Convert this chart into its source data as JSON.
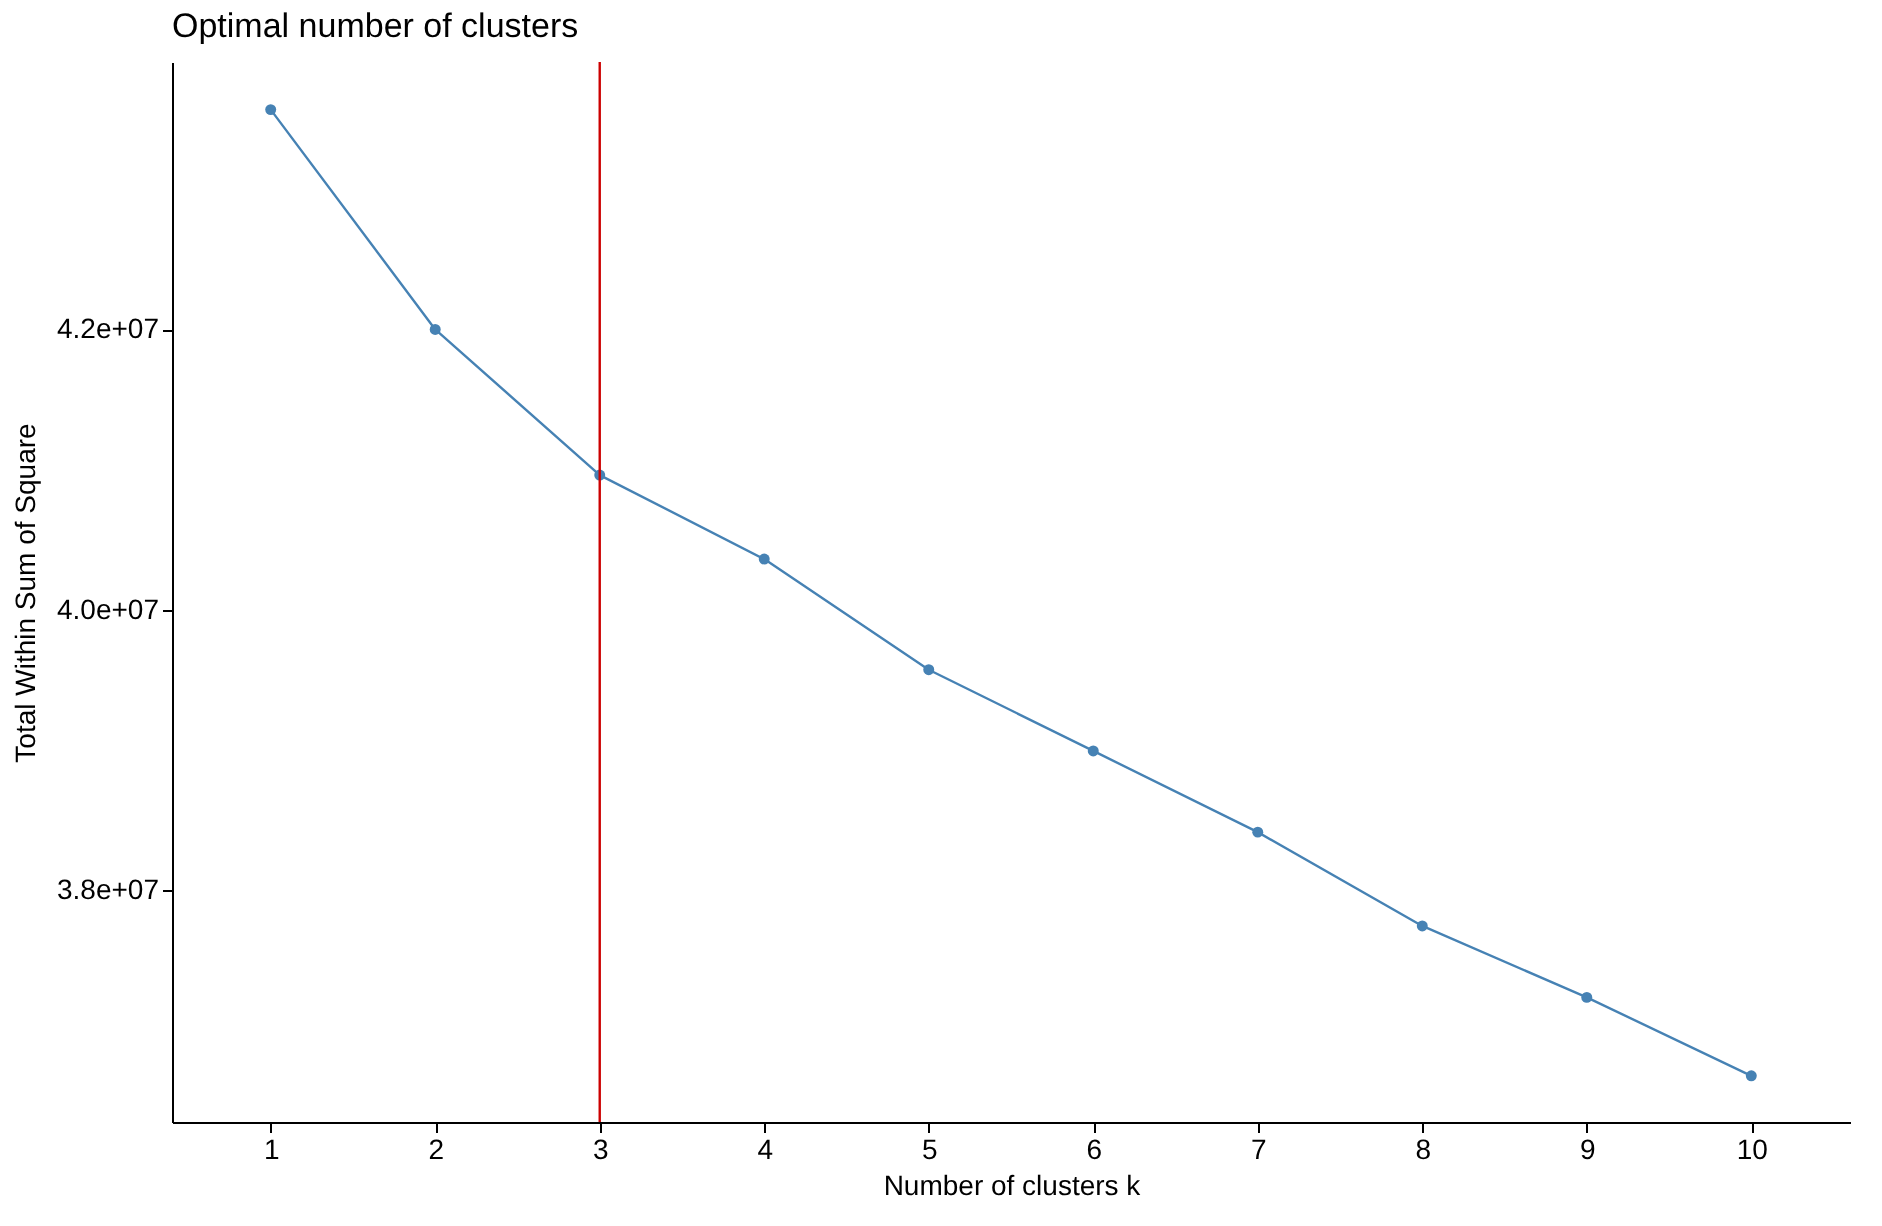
{
  "chart_data": {
    "type": "line",
    "title": "Optimal number of clusters",
    "xlabel": "Number of clusters k",
    "ylabel": "Total Within Sum of Square",
    "x": [
      1,
      2,
      3,
      4,
      5,
      6,
      7,
      8,
      9,
      10
    ],
    "series": [
      {
        "color": "#4682b4",
        "values": [
          43570000,
          42000000,
          40960000,
          40360000,
          39570000,
          38990000,
          38410000,
          37740000,
          37230000,
          36670000
        ]
      }
    ],
    "xlim": [
      0.4,
      10.6
    ],
    "xticks": [
      1,
      2,
      3,
      4,
      5,
      6,
      7,
      8,
      9,
      10
    ],
    "ylim": [
      36340000,
      43910000
    ],
    "yticks": [
      {
        "value": 38000000,
        "label": "3.8e+07"
      },
      {
        "value": 40000000,
        "label": "4.0e+07"
      },
      {
        "value": 42000000,
        "label": "4.2e+07"
      }
    ],
    "ref_lines": [
      {
        "axis": "x",
        "value": 3,
        "color": "#cc0000"
      }
    ],
    "grid": false,
    "marker": "circle"
  }
}
